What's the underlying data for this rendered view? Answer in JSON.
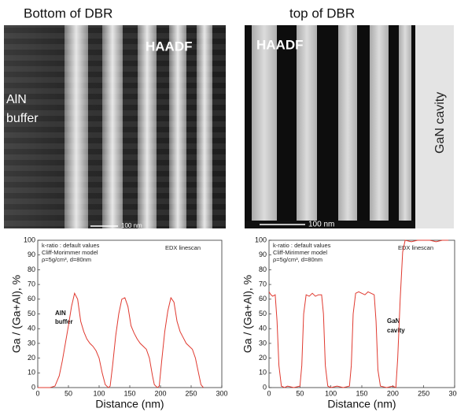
{
  "images": [
    {
      "title": "Bottom of DBR",
      "detector": "HAADF",
      "region": [
        "AlN",
        "buffer"
      ],
      "scale_bar": "100 nm"
    },
    {
      "title": "top of DBR",
      "detector": "HAADF",
      "region": "GaN cavity",
      "scale_bar": "100 nm"
    }
  ],
  "chart_data": [
    {
      "type": "line",
      "xlabel": "Distance (nm)",
      "ylabel": "Ga / (Ga+Al), %",
      "annotations": [
        "k-ratio : default values",
        "Cliff-Morimmer model",
        "ρ=5g/cm³, d=80nm",
        "EDX  linescan"
      ],
      "region": [
        "AlN",
        "buffer"
      ],
      "color": "#e0392f",
      "x": [
        0,
        10,
        20,
        28,
        35,
        40,
        45,
        50,
        55,
        60,
        65,
        70,
        75,
        80,
        85,
        90,
        95,
        100,
        105,
        110,
        115,
        118,
        122,
        127,
        132,
        137,
        142,
        147,
        152,
        157,
        162,
        167,
        172,
        177,
        182,
        187,
        190,
        195,
        198,
        202,
        207,
        212,
        217,
        222,
        227,
        232,
        237,
        242,
        247,
        252,
        257,
        262,
        266,
        270
      ],
      "values": [
        0,
        0,
        0,
        1,
        8,
        18,
        30,
        42,
        55,
        64,
        60,
        45,
        38,
        33,
        30,
        28,
        25,
        20,
        10,
        2,
        0,
        1,
        15,
        35,
        50,
        60,
        61,
        55,
        42,
        37,
        33,
        30,
        28,
        26,
        20,
        8,
        2,
        0,
        1,
        18,
        38,
        52,
        61,
        58,
        45,
        38,
        34,
        30,
        28,
        26,
        20,
        10,
        2,
        0
      ],
      "xlim": [
        0,
        300
      ],
      "xticks": [
        0,
        50,
        100,
        150,
        200,
        250,
        300
      ],
      "ylim": [
        0,
        100
      ],
      "yticks": [
        0,
        10,
        20,
        30,
        40,
        50,
        60,
        70,
        80,
        90,
        100
      ]
    },
    {
      "type": "line",
      "xlabel": "Distance (nm)",
      "ylabel": "Ga / (Ga+Al), %",
      "annotations": [
        "k-ratio : default values",
        "Cliff-Mirimmer model",
        "ρ=5g/cm³, d=80nm",
        "EDX linescan"
      ],
      "region": [
        "GaN",
        "cavity"
      ],
      "color": "#e0392f",
      "x": [
        0,
        3,
        6,
        10,
        13,
        16,
        20,
        25,
        30,
        40,
        50,
        53,
        56,
        60,
        65,
        70,
        75,
        80,
        85,
        88,
        91,
        95,
        100,
        110,
        120,
        130,
        133,
        136,
        140,
        145,
        150,
        155,
        160,
        165,
        170,
        173,
        176,
        180,
        190,
        200,
        205,
        208,
        212,
        216,
        220,
        230,
        240,
        250,
        260,
        270,
        280,
        290
      ],
      "values": [
        65,
        63,
        62,
        63,
        45,
        15,
        1,
        0,
        1,
        0,
        1,
        15,
        50,
        63,
        62,
        64,
        62,
        63,
        63,
        50,
        15,
        1,
        0,
        1,
        0,
        1,
        15,
        50,
        64,
        65,
        64,
        63,
        65,
        64,
        63,
        45,
        12,
        1,
        0,
        1,
        0,
        20,
        60,
        92,
        100,
        99,
        100,
        100,
        100,
        99,
        100,
        100
      ],
      "xlim": [
        0,
        300
      ],
      "xticks": [
        0,
        50,
        100,
        150,
        200,
        250,
        300
      ],
      "ylim": [
        0,
        100
      ],
      "yticks": [
        0,
        10,
        20,
        30,
        40,
        50,
        60,
        70,
        80,
        90,
        100
      ]
    }
  ]
}
